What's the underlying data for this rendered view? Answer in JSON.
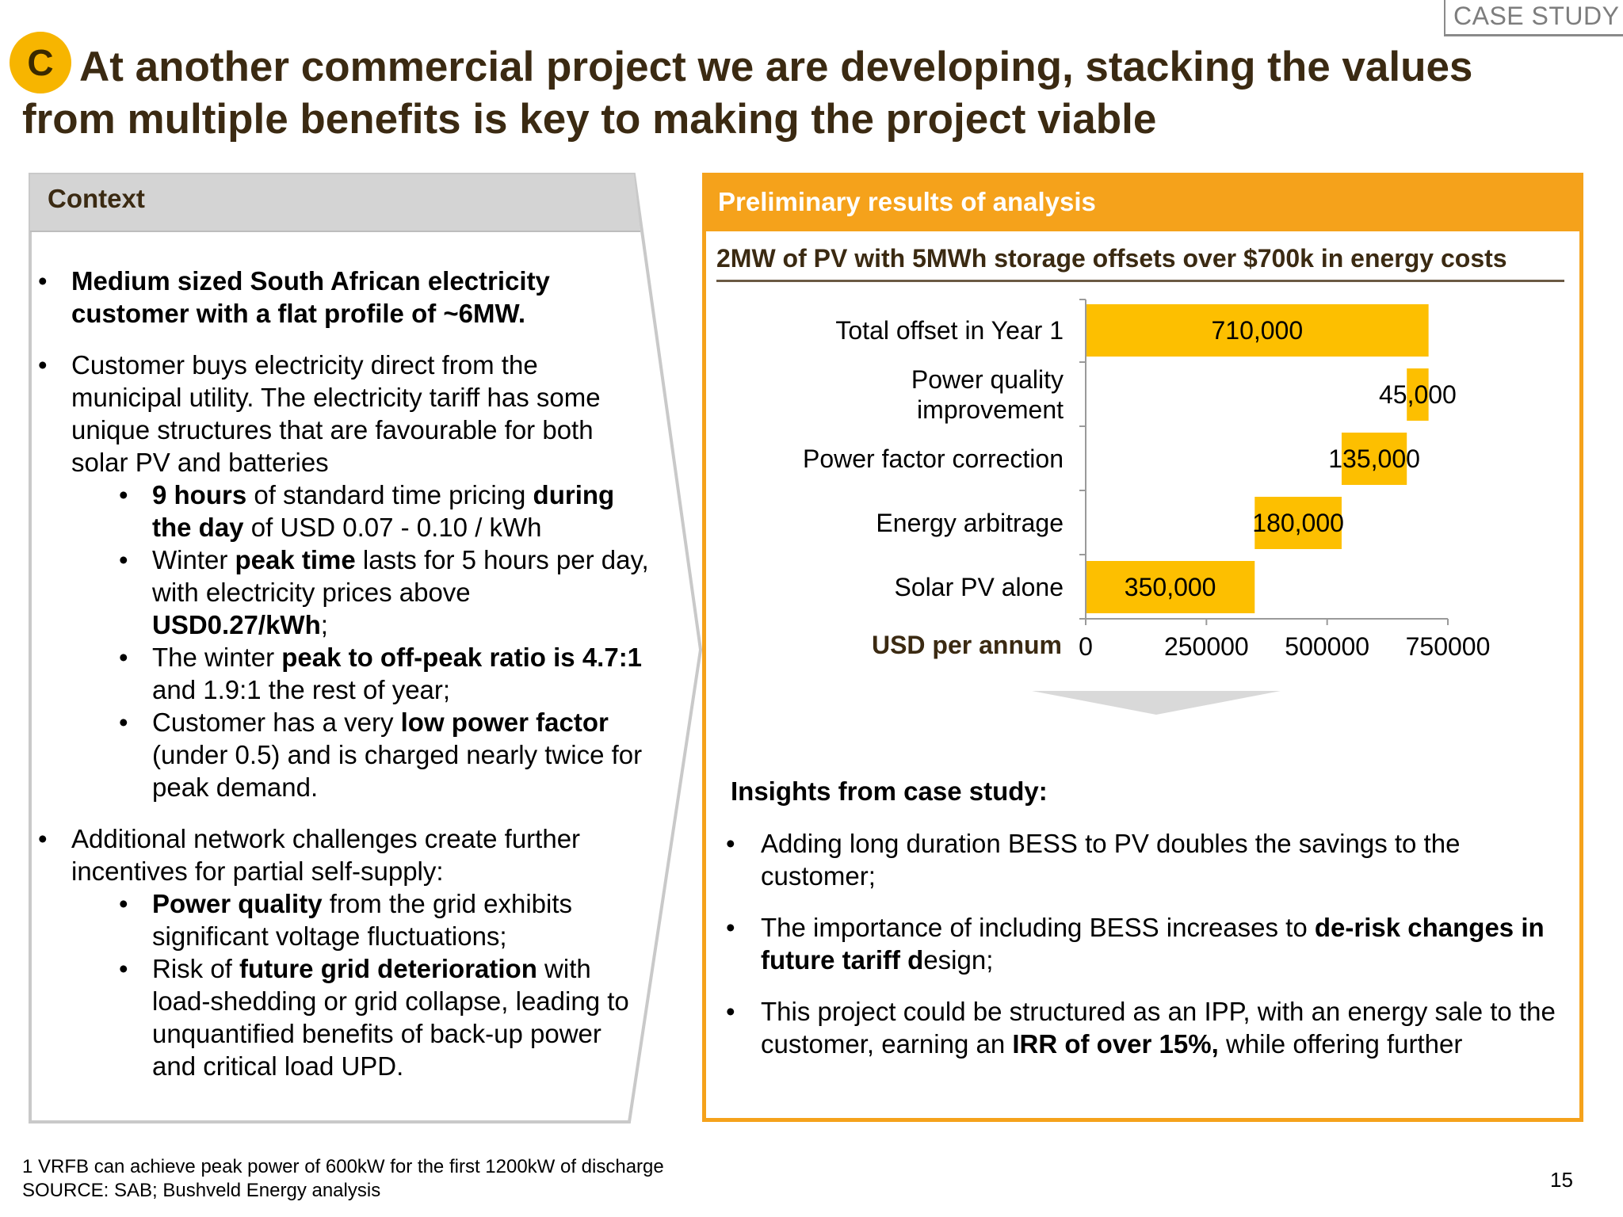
{
  "tag": "CASE STUDY",
  "badge": "C",
  "title": "At another commercial project we are developing, stacking the values from multiple benefits is key to making the project viable",
  "context": {
    "header": "Context",
    "bullet1": "Medium sized South African electricity customer with a flat profile of ~6MW.",
    "bullet2": "Customer buys electricity direct from the municipal utility. The electricity tariff has some unique structures that are favourable for both solar PV and batteries",
    "sub2a": {
      "b1": "9 hours",
      "t1": " of standard time pricing ",
      "b2": "during the day",
      "t2": " of USD 0.07 - 0.10 / kWh"
    },
    "sub2b": {
      "t1": "Winter ",
      "b1": "peak time",
      "t2": " lasts for 5 hours per day, with electricity prices above ",
      "b2": "USD0.27/kWh",
      "t3": ";"
    },
    "sub2c": {
      "t1": "The winter ",
      "b1": "peak to off-peak ratio is 4.7:1",
      "t2": " and 1.9:1 the rest of year;"
    },
    "sub2d": {
      "t1": "Customer has a very ",
      "b1": "low power factor",
      "t2": " (under 0.5) and is charged nearly twice for peak demand."
    },
    "bullet3": "Additional network challenges create further incentives for partial self-supply:",
    "sub3a": {
      "b1": "Power quality",
      "t1": " from the grid exhibits significant voltage fluctuations;"
    },
    "sub3b": {
      "t1": "Risk of ",
      "b1": "future grid deterioration",
      "t2": " with load-shedding or grid collapse, leading to unquantified benefits of back-up power and critical load UPD."
    }
  },
  "results": {
    "header": "Preliminary results of analysis",
    "chart_title": "2MW of PV with 5MWh storage offsets over $700k in energy costs"
  },
  "chart_data": {
    "type": "bar",
    "orientation": "horizontal",
    "subtype": "waterfall",
    "categories": [
      "Total offset in Year 1",
      "Power quality improvement",
      "Power factor correction",
      "Energy arbitrage",
      "Solar PV alone"
    ],
    "category_lines": [
      [
        "Total offset in Year 1"
      ],
      [
        "Power quality",
        "improvement"
      ],
      [
        "Power factor correction"
      ],
      [
        "Energy arbitrage"
      ],
      [
        "Solar PV alone"
      ]
    ],
    "bars": [
      {
        "category": "Total offset in Year 1",
        "start": 0,
        "value": 710000,
        "label": "710,000"
      },
      {
        "category": "Power quality improvement",
        "start": 665000,
        "value": 45000,
        "label": "45,000"
      },
      {
        "category": "Power factor correction",
        "start": 530000,
        "value": 135000,
        "label": "135,000"
      },
      {
        "category": "Energy arbitrage",
        "start": 350000,
        "value": 180000,
        "label": "180,000"
      },
      {
        "category": "Solar PV alone",
        "start": 0,
        "value": 350000,
        "label": "350,000"
      }
    ],
    "xlabel": "USD per annum",
    "xlim": [
      0,
      750000
    ],
    "xticks": [
      0,
      250000,
      500000,
      750000
    ],
    "xtick_labels": [
      "0",
      "250000",
      "500000",
      "750000"
    ],
    "bar_color": "#fdbf00",
    "grid": false
  },
  "insights": {
    "title": "Insights from case study:",
    "i1": "Adding long duration BESS to PV doubles the savings to the customer;",
    "i2": {
      "t1": "The importance of including BESS increases to ",
      "b1": "de-risk changes in future tariff d",
      "t2": "esign;"
    },
    "i3": {
      "t1": "This project could be structured as an IPP, with an energy sale to the customer, earning an ",
      "b1": "IRR of over 15%,",
      "t2": " while offering further"
    }
  },
  "footnote": {
    "line1": "1 VRFB can achieve peak power of 600kW for the first 1200kW of discharge",
    "line2": "SOURCE: SAB; Bushveld Energy analysis"
  },
  "page_number": "15",
  "colors": {
    "accent": "#f5a21b",
    "bar": "#fdbf00",
    "title": "#3b2a12",
    "context_header_bg": "#d4d4d4"
  }
}
